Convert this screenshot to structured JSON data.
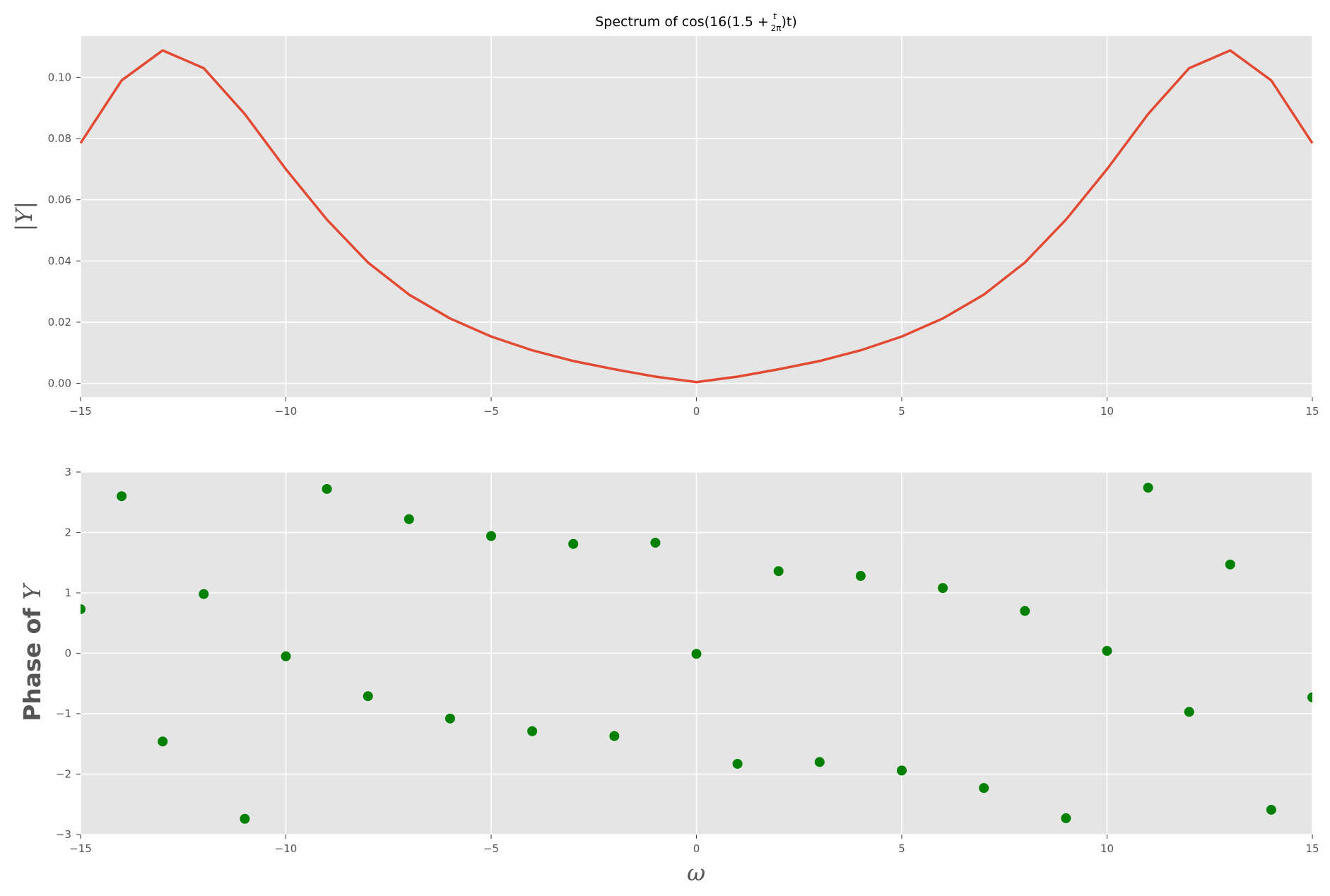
{
  "figure": {
    "title": "Spectrum of cos(16(1.5 + t/2π)t)",
    "title_parts": {
      "prefix": "Spectrum of cos(16(1.5 + ",
      "frac_num": "t",
      "frac_den": "2π",
      "suffix": ")t)"
    },
    "background": "#ffffff",
    "axes_facecolor": "#e5e5e5",
    "grid_color": "#ffffff"
  },
  "chart_data": [
    {
      "type": "line",
      "ylabel": "|Y|",
      "xlim": [
        -15,
        15
      ],
      "ylim": [
        -0.0045,
        0.1135
      ],
      "grid": true,
      "xticks": [
        -15,
        -10,
        -5,
        0,
        5,
        10,
        15
      ],
      "yticks": [
        0.0,
        0.02,
        0.04,
        0.06,
        0.08,
        0.1
      ],
      "xtick_labels": [
        "−15",
        "−10",
        "−5",
        "0",
        "5",
        "10",
        "15"
      ],
      "ytick_labels": [
        "0.00",
        "0.02",
        "0.04",
        "0.06",
        "0.08",
        "0.10"
      ],
      "series": [
        {
          "color": "#e24a33",
          "x": [
            -15,
            -14,
            -13,
            -12,
            -11,
            -10,
            -9,
            -8,
            -7,
            -6,
            -5,
            -4,
            -3,
            -2,
            -1,
            0,
            1,
            2,
            3,
            4,
            5,
            6,
            7,
            8,
            9,
            10,
            11,
            12,
            13,
            14,
            15
          ],
          "y": [
            0.0785,
            0.099,
            0.1088,
            0.103,
            0.088,
            0.07,
            0.0535,
            0.0395,
            0.029,
            0.0212,
            0.0153,
            0.0108,
            0.0073,
            0.0046,
            0.0022,
            0.0004,
            0.0022,
            0.0046,
            0.0073,
            0.0108,
            0.0153,
            0.0212,
            0.029,
            0.0395,
            0.0535,
            0.07,
            0.088,
            0.103,
            0.1088,
            0.099,
            0.0785
          ]
        }
      ]
    },
    {
      "type": "scatter",
      "ylabel": "Phase of Y",
      "ylabel_parts": {
        "text": "Phase of ",
        "symbol": "Y"
      },
      "xlabel": "ω",
      "xlim": [
        -15,
        15
      ],
      "ylim": [
        -3,
        3
      ],
      "grid": true,
      "xticks": [
        -15,
        -10,
        -5,
        0,
        5,
        10,
        15
      ],
      "yticks": [
        -3,
        -2,
        -1,
        0,
        1,
        2,
        3
      ],
      "xtick_labels": [
        "−15",
        "−10",
        "−5",
        "0",
        "5",
        "10",
        "15"
      ],
      "ytick_labels": [
        "−3",
        "−2",
        "−1",
        "0",
        "1",
        "2",
        "3"
      ],
      "series": [
        {
          "color": "#008000",
          "x": [
            -15,
            -14,
            -13,
            -12,
            -11,
            -10,
            -9,
            -8,
            -7,
            -6,
            -5,
            -4,
            -3,
            -2,
            -1,
            0,
            1,
            2,
            3,
            4,
            5,
            6,
            7,
            8,
            9,
            10,
            11,
            12,
            13,
            14,
            15
          ],
          "y": [
            0.73,
            2.6,
            -1.46,
            0.98,
            -2.74,
            -0.05,
            2.72,
            -0.71,
            2.22,
            -1.08,
            1.94,
            -1.29,
            1.81,
            -1.37,
            1.83,
            -0.01,
            -1.83,
            1.36,
            -1.8,
            1.28,
            -1.94,
            1.08,
            -2.23,
            0.7,
            -2.73,
            0.04,
            2.74,
            -0.97,
            1.47,
            -2.59,
            -0.73
          ]
        }
      ]
    }
  ]
}
